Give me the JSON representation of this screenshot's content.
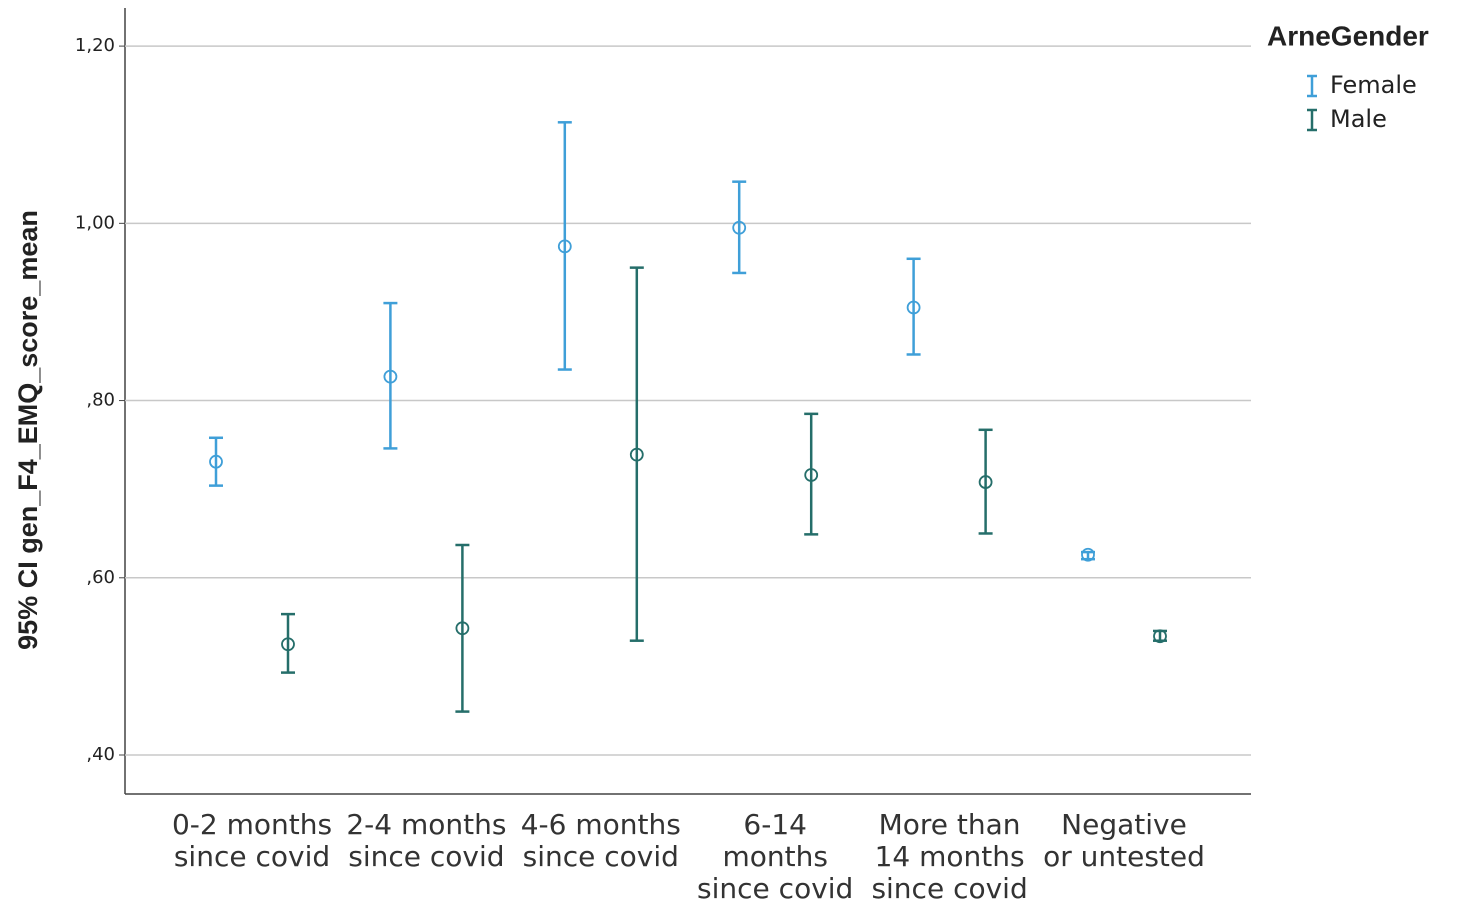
{
  "chart_data": {
    "type": "errorbar",
    "y_label": "95% CI gen_F4_EMQ_score_mean",
    "legend_title": "ArneGender",
    "legend_position": "right",
    "grid": true,
    "categories": [
      [
        "0-2 months",
        "since covid"
      ],
      [
        "2-4 months",
        "since covid"
      ],
      [
        "4-6 months",
        "since covid"
      ],
      [
        "6-14",
        "months",
        "since covid"
      ],
      [
        "More than",
        "14 months",
        "since covid"
      ],
      [
        "Negative",
        "or untested"
      ]
    ],
    "ylim": [
      0.356,
      1.243
    ],
    "yticks": [
      {
        "value": 0.4,
        "label": ",40"
      },
      {
        "value": 0.6,
        "label": ",60"
      },
      {
        "value": 0.8,
        "label": ",80"
      },
      {
        "value": 1.0,
        "label": "1,00"
      },
      {
        "value": 1.2,
        "label": "1,20"
      }
    ],
    "series": [
      {
        "name": "Female",
        "color": "#3f9fd8",
        "values": [
          0.731,
          0.827,
          0.974,
          0.995,
          0.905,
          0.626
        ],
        "lower": [
          0.704,
          0.746,
          0.835,
          0.944,
          0.852,
          0.621
        ],
        "upper": [
          0.758,
          0.91,
          1.114,
          1.047,
          0.96,
          0.629
        ]
      },
      {
        "name": "Male",
        "color": "#256e6a",
        "values": [
          0.525,
          0.543,
          0.739,
          0.716,
          0.708,
          0.534
        ],
        "lower": [
          0.493,
          0.449,
          0.529,
          0.649,
          0.65,
          0.529
        ],
        "upper": [
          0.559,
          0.637,
          0.95,
          0.785,
          0.767,
          0.54
        ]
      }
    ]
  }
}
